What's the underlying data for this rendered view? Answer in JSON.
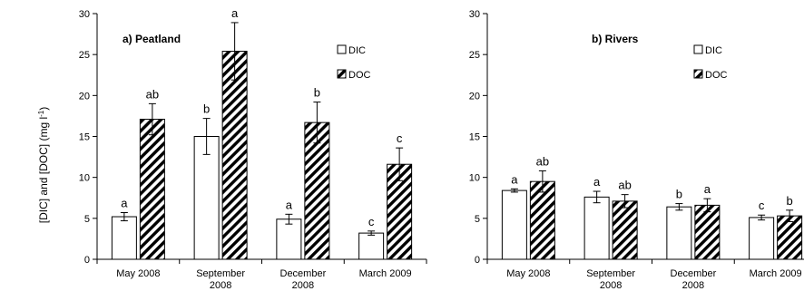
{
  "figure": {
    "ylabel_text": "[DIC] and [DOC] (mg l",
    "ylabel_sup": "-1",
    "ylabel_close": ")"
  },
  "chart_data": [
    {
      "type": "bar",
      "title": "a) Peatland",
      "categories": [
        "May 2008",
        "September\n2008",
        "December\n2008",
        "March 2009"
      ],
      "ylim": [
        0,
        30
      ],
      "yticks": [
        0,
        5,
        10,
        15,
        20,
        25,
        30
      ],
      "grid": false,
      "legend_position": "top-right",
      "series": [
        {
          "name": "DIC",
          "fill": "white",
          "values": [
            5.2,
            15.0,
            4.9,
            3.2
          ],
          "error": [
            0.5,
            2.2,
            0.6,
            0.25
          ],
          "letters": [
            "a",
            "b",
            "a",
            "c"
          ]
        },
        {
          "name": "DOC",
          "fill": "hatched",
          "values": [
            17.1,
            25.4,
            16.7,
            11.6
          ],
          "error": [
            1.9,
            3.5,
            2.5,
            2.0
          ],
          "letters": [
            "ab",
            "a",
            "b",
            "c"
          ]
        }
      ]
    },
    {
      "type": "bar",
      "title": "b) Rivers",
      "categories": [
        "May 2008",
        "September\n2008",
        "December\n2008",
        "March 2009"
      ],
      "ylim": [
        0,
        30
      ],
      "yticks": [
        0,
        5,
        10,
        15,
        20,
        25,
        30
      ],
      "grid": false,
      "legend_position": "top-right",
      "series": [
        {
          "name": "DIC",
          "fill": "white",
          "values": [
            8.4,
            7.6,
            6.4,
            5.1
          ],
          "error": [
            0.2,
            0.7,
            0.4,
            0.3
          ],
          "letters": [
            "a",
            "a",
            "b",
            "c"
          ]
        },
        {
          "name": "DOC",
          "fill": "hatched",
          "values": [
            9.5,
            7.1,
            6.6,
            5.3
          ],
          "error": [
            1.3,
            0.8,
            0.8,
            0.7
          ],
          "letters": [
            "ab",
            "ab",
            "a",
            "b"
          ]
        }
      ]
    }
  ]
}
